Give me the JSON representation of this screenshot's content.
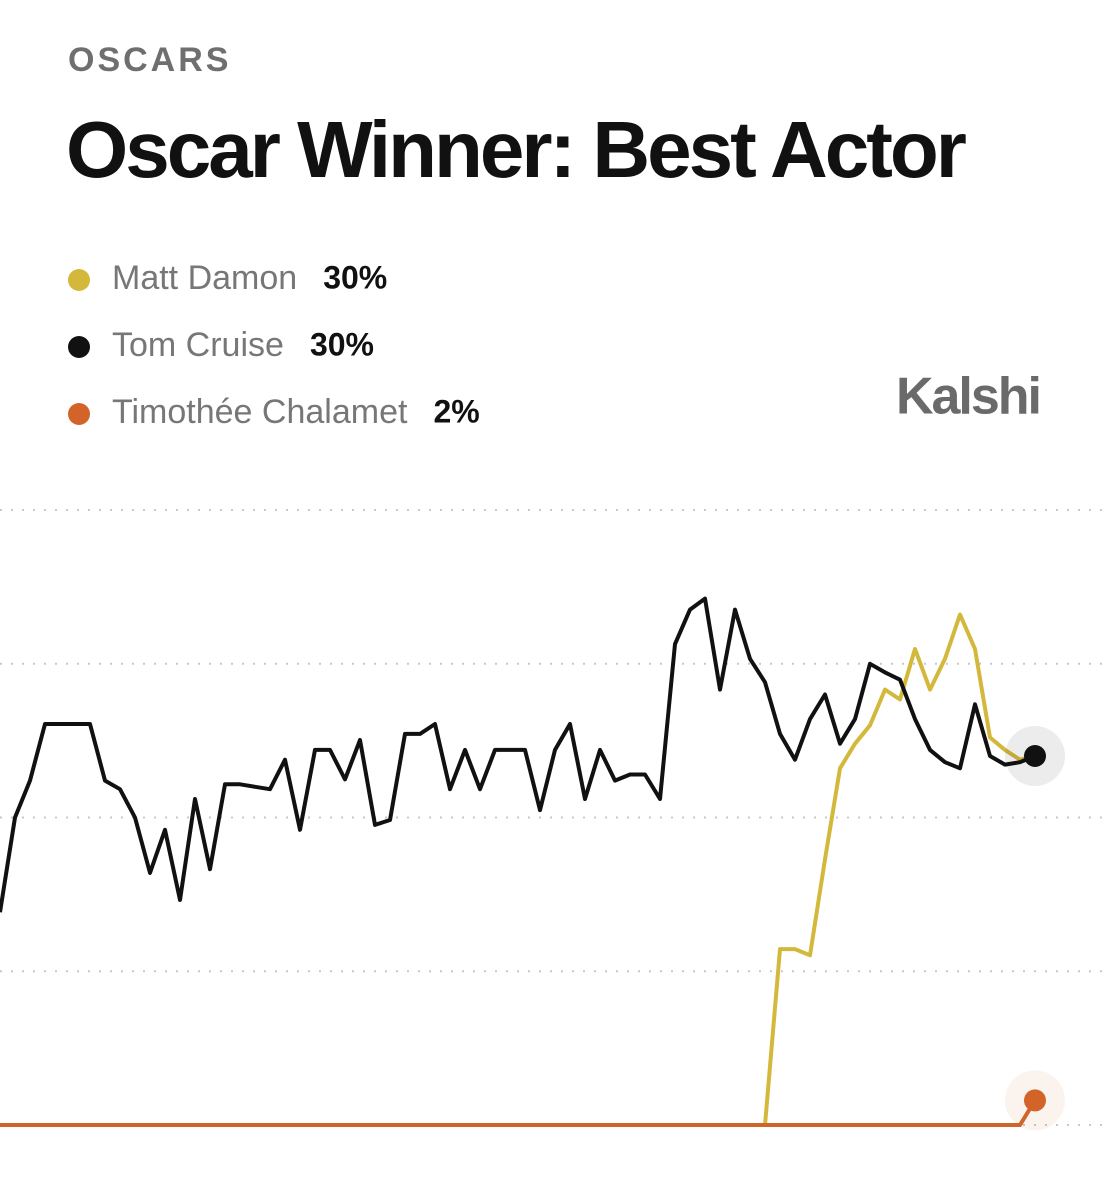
{
  "chart_data": {
    "type": "line",
    "kicker": "OSCARS",
    "title": "Oscar Winner: Best Actor",
    "brand": "Kalshi",
    "ylim": [
      0,
      50
    ],
    "yticks": [
      0,
      12.5,
      25,
      37.5,
      50
    ],
    "grid": true,
    "series": [
      {
        "name": "Matt Damon",
        "color": "#d4b83c",
        "value_label": "30%",
        "values": [
          0,
          0,
          0,
          0,
          0,
          0,
          0,
          0,
          0,
          0,
          0,
          0,
          0,
          0,
          0,
          0,
          0,
          0,
          0,
          0,
          0,
          0,
          0,
          0,
          0,
          0,
          0,
          0,
          0,
          0,
          0,
          0,
          0,
          0,
          0,
          0,
          0,
          0,
          0,
          0,
          0,
          0,
          0,
          0,
          0,
          0,
          0,
          0,
          0,
          0,
          0,
          0,
          14.3,
          14.3,
          13.8,
          21.6,
          29,
          31,
          32.5,
          35.4,
          34.6,
          38.7,
          35.4,
          37.9,
          41.5,
          38.7,
          31.5,
          30.5,
          29.7,
          30
        ]
      },
      {
        "name": "Tom Cruise",
        "color": "#111111",
        "value_label": "30%",
        "values": [
          17.3,
          25,
          28,
          32.6,
          32.6,
          32.6,
          32.6,
          28,
          27.3,
          25,
          20.5,
          24,
          18.3,
          26.5,
          20.8,
          27.7,
          27.7,
          27.5,
          27.3,
          29.7,
          24,
          30.5,
          30.5,
          28.1,
          31.3,
          24.4,
          24.8,
          31.8,
          31.8,
          32.6,
          27.3,
          30.5,
          27.3,
          30.5,
          30.5,
          30.5,
          25.6,
          30.5,
          32.6,
          26.5,
          30.5,
          28,
          28.5,
          28.5,
          26.5,
          39.1,
          41.9,
          42.8,
          35.4,
          41.9,
          37.9,
          36,
          31.8,
          29.7,
          33,
          35,
          31,
          33,
          37.5,
          36.8,
          36.2,
          33,
          30.5,
          29.5,
          29,
          34.2,
          30,
          29.3,
          29.5,
          30
        ]
      },
      {
        "name": "Timothée Chalamet",
        "color": "#d2642a",
        "value_label": "2%",
        "values": [
          0,
          0,
          0,
          0,
          0,
          0,
          0,
          0,
          0,
          0,
          0,
          0,
          0,
          0,
          0,
          0,
          0,
          0,
          0,
          0,
          0,
          0,
          0,
          0,
          0,
          0,
          0,
          0,
          0,
          0,
          0,
          0,
          0,
          0,
          0,
          0,
          0,
          0,
          0,
          0,
          0,
          0,
          0,
          0,
          0,
          0,
          0,
          0,
          0,
          0,
          0,
          0,
          0,
          0,
          0,
          0,
          0,
          0,
          0,
          0,
          0,
          0,
          0,
          0,
          0,
          0,
          0,
          0,
          0,
          2
        ]
      }
    ]
  }
}
